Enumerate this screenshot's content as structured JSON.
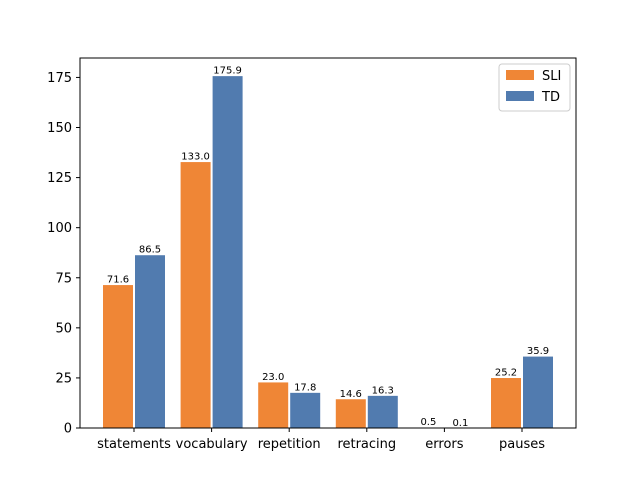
{
  "chart_data": {
    "type": "bar",
    "title": "",
    "xlabel": "",
    "ylabel": "",
    "categories": [
      "statements",
      "vocabulary",
      "repetition",
      "retracing",
      "errors",
      "pauses"
    ],
    "series": [
      {
        "name": "SLI",
        "color": "#EF8636",
        "values": [
          71.6,
          133.0,
          23.0,
          14.6,
          0.5,
          25.2
        ],
        "labels": [
          "71.6",
          "133.0",
          "23.0",
          "14.6",
          "0.5",
          "25.2"
        ]
      },
      {
        "name": "TD",
        "color": "#517BAF",
        "values": [
          86.5,
          175.9,
          17.8,
          16.3,
          0.1,
          35.9
        ],
        "labels": [
          "86.5",
          "175.9",
          "17.8",
          "16.3",
          "0.1",
          "35.9"
        ]
      }
    ],
    "ylim": [
      0,
      184.7
    ],
    "yticks": [
      0,
      25,
      50,
      75,
      100,
      125,
      150,
      175
    ],
    "grid": false,
    "legend_position": "top-right"
  }
}
